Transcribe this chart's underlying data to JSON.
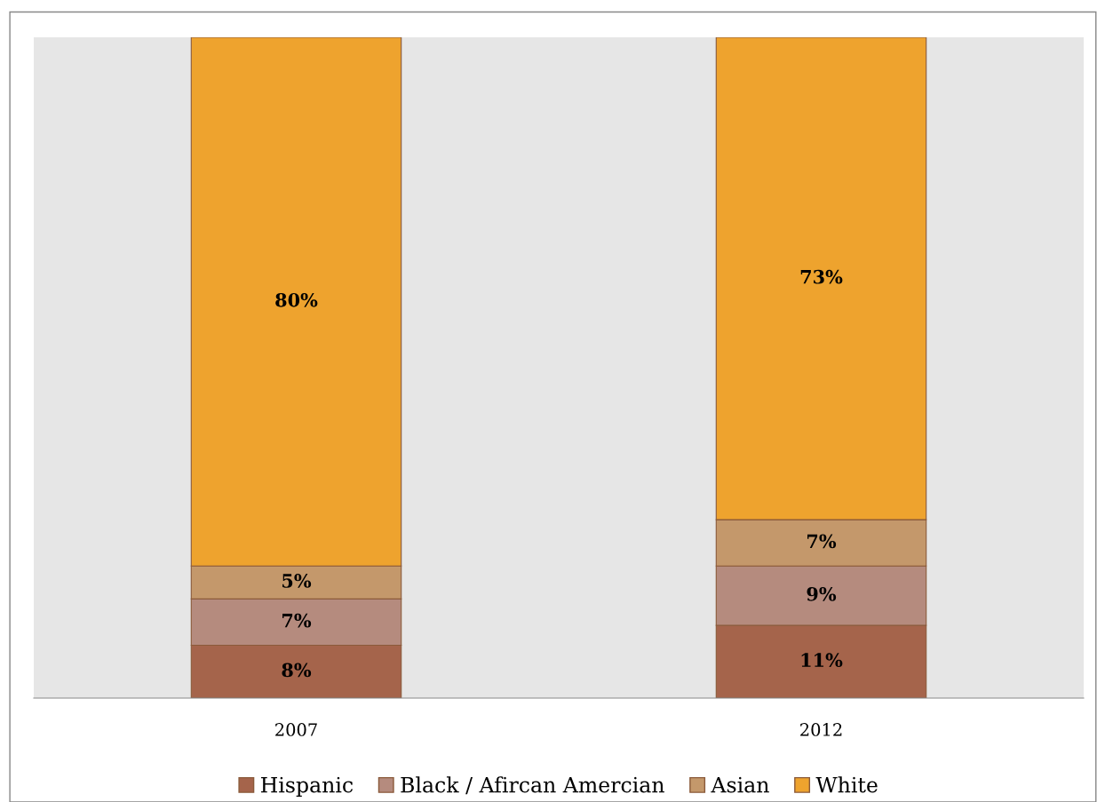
{
  "chart_data": {
    "type": "bar",
    "stacked": true,
    "legend": "bottom",
    "grid": false,
    "categories": [
      "2007",
      "2012"
    ],
    "series": [
      {
        "name": "Hispanic",
        "color": "#a5644b",
        "values": [
          8,
          11
        ],
        "value_labels": [
          "8%",
          "11%"
        ]
      },
      {
        "name": "Black / Afircan Amercian",
        "color": "#b58b7e",
        "values": [
          7,
          9
        ],
        "value_labels": [
          "7%",
          "9%"
        ]
      },
      {
        "name": "Asian",
        "color": "#c4986b",
        "values": [
          5,
          7
        ],
        "value_labels": [
          "5%",
          "7%"
        ]
      },
      {
        "name": "White",
        "color": "#eea32e",
        "values": [
          80,
          73
        ],
        "value_labels": [
          "80%",
          "73%"
        ]
      }
    ]
  }
}
